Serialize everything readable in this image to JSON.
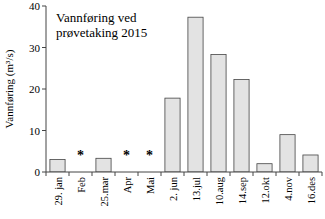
{
  "chart_data": {
    "type": "bar",
    "title": "Vannføring ved prøvetaking 2015",
    "y_label": "Vannføring (m³/s)",
    "categories": [
      "29. jan",
      "Feb",
      "25.mar",
      "Apr",
      "Mai",
      "2. jun",
      "13.jul",
      "10.aug",
      "14.sep",
      "12.okt",
      "4.nov",
      "16.des"
    ],
    "values": [
      3,
      null,
      3.3,
      null,
      null,
      17.8,
      37.3,
      28.3,
      22.3,
      2,
      9,
      4.1
    ],
    "color": "#e3e3e3",
    "annotations": [
      {
        "text": "*",
        "category": "Feb"
      },
      {
        "text": "*",
        "category": "Apr"
      },
      {
        "text": "*",
        "category": "Mai"
      }
    ],
    "ylim": [
      0,
      40
    ],
    "yticks": [
      0,
      10,
      20,
      30,
      40
    ],
    "grid": false
  }
}
